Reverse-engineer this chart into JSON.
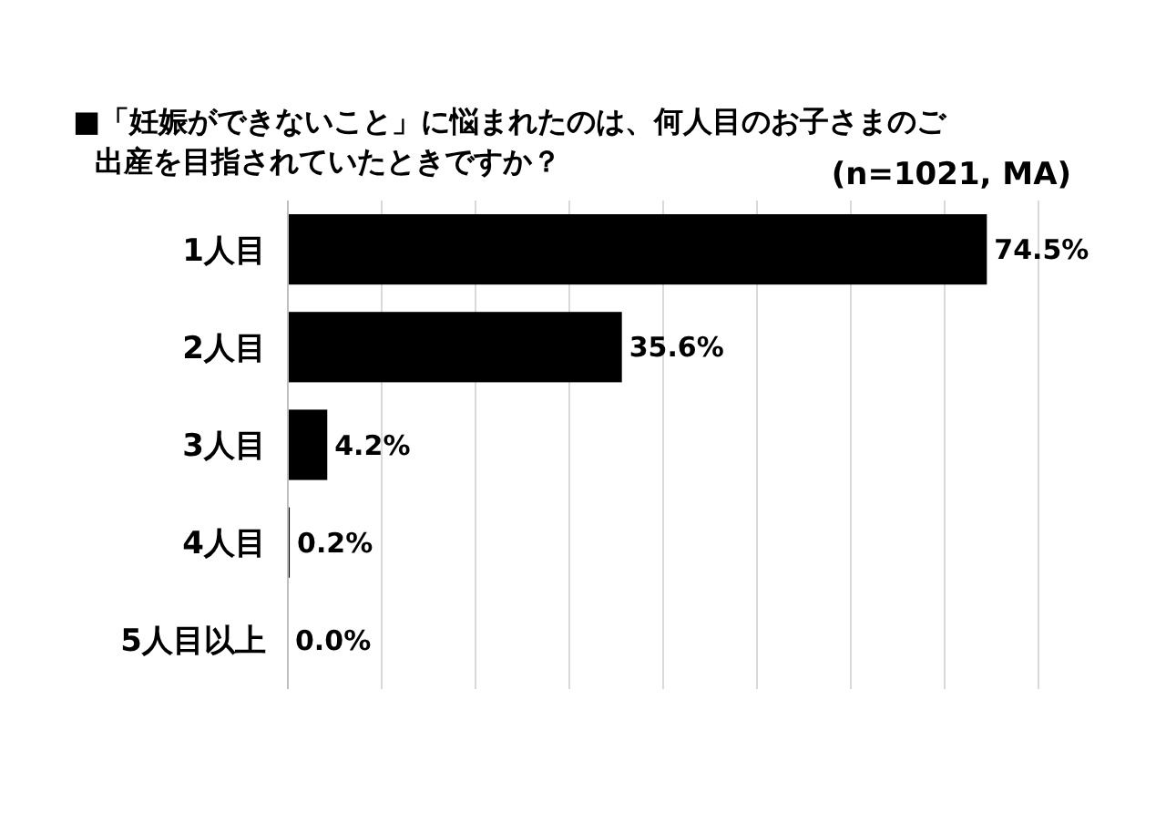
{
  "chart_data": {
    "type": "bar",
    "orientation": "horizontal",
    "title": "■「妊娠ができないこと」に悩まれたのは、何人目のお子さまのご出産を目指されていたときですか？",
    "subtitle": "(n=1021, MA)",
    "categories": [
      "1人目",
      "2人目",
      "3人目",
      "4人目",
      "5人目以上"
    ],
    "values": [
      74.5,
      35.6,
      4.2,
      0.2,
      0.0
    ],
    "value_labels": [
      "74.5%",
      "35.6%",
      "4.2%",
      "0.2%",
      "0.0%"
    ],
    "color": "#000000",
    "xlim": [
      0,
      80
    ],
    "xticks": [
      0,
      10,
      20,
      30,
      40,
      50,
      60,
      70,
      80
    ],
    "tick_labels": "y",
    "grid": "x"
  }
}
